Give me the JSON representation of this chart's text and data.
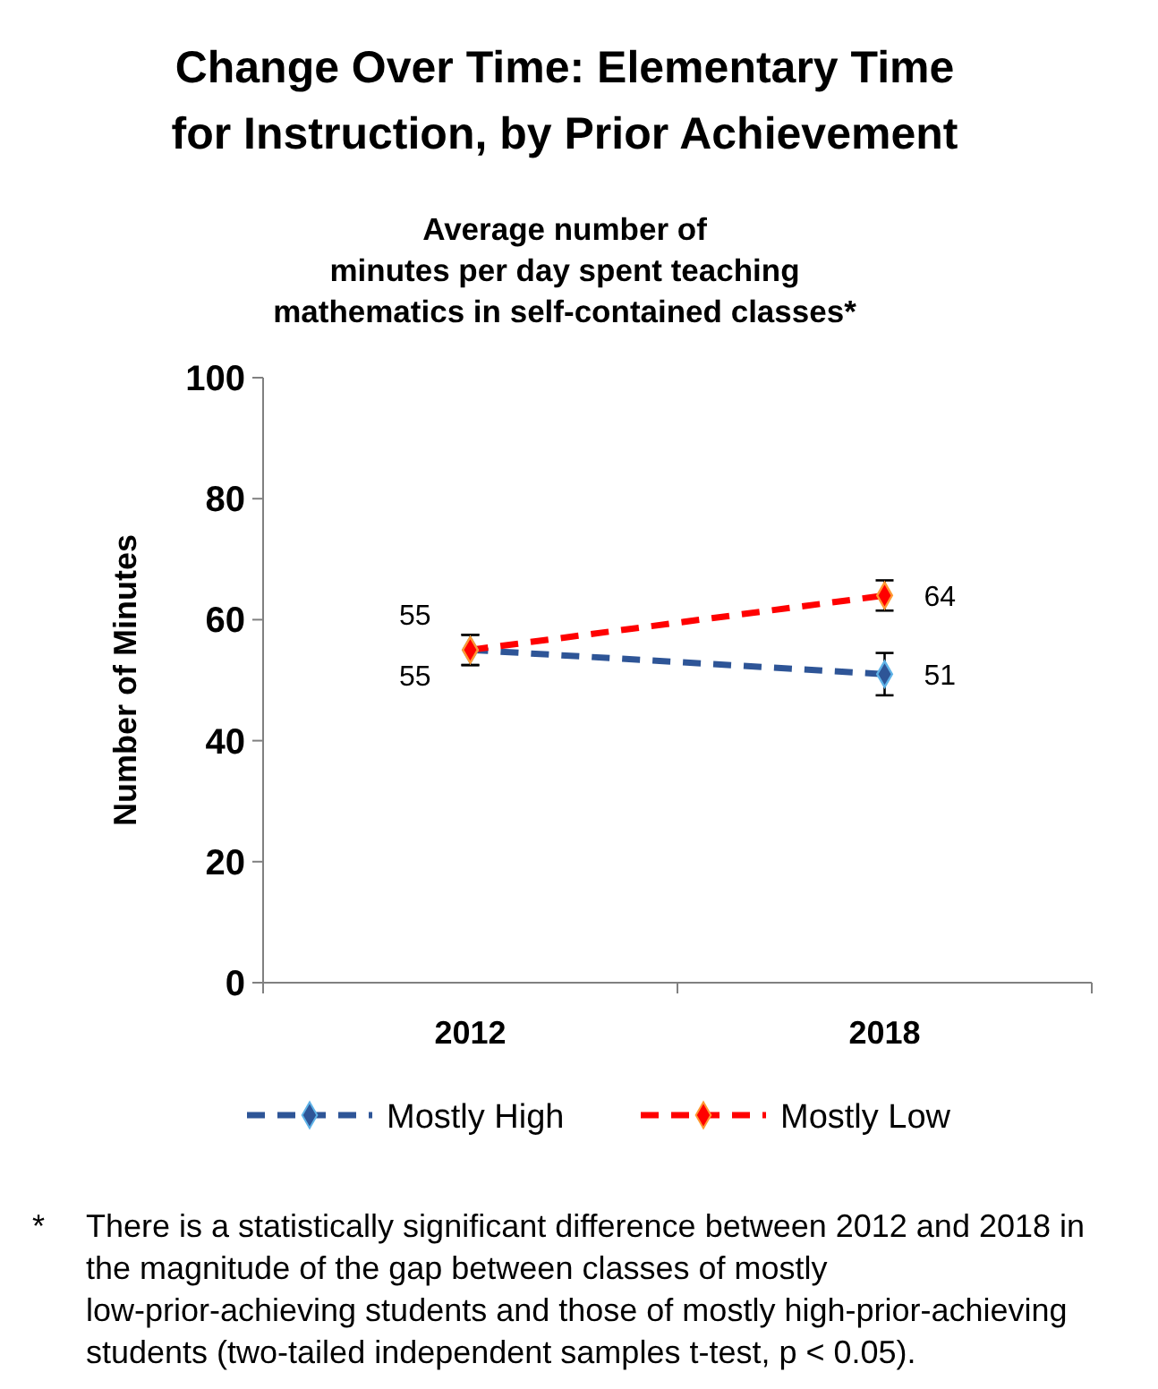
{
  "chart_data": {
    "type": "line",
    "title": "Change Over Time: Elementary Time\nfor Instruction, by Prior Achievement",
    "subtitle": "Average number of\nminutes per day spent teaching\nmathematics in self-contained classes*",
    "ylabel": "Number of Minutes",
    "categories": [
      "2012",
      "2018"
    ],
    "series": [
      {
        "name": "Mostly High",
        "color": "#2e5597",
        "values": [
          55,
          51
        ],
        "errors": [
          2.5,
          3.5
        ]
      },
      {
        "name": "Mostly Low",
        "color": "#ff0000",
        "values": [
          55,
          64
        ],
        "errors": [
          2.5,
          2.5
        ]
      }
    ],
    "ylim": [
      0,
      100
    ],
    "yticks": [
      0,
      20,
      40,
      60,
      80,
      100
    ],
    "data_labels": true,
    "legend": "bottom",
    "marker": "diamond",
    "line_style": "dashed",
    "grid": false,
    "annotations": [
      "*  There is a statistically significant difference between 2012 and 2018 in the magnitude of the gap between classes of mostly low-prior-achieving students and those of mostly high-prior-achieving students (two-tailed independent samples t-test, p < 0.05)."
    ]
  }
}
